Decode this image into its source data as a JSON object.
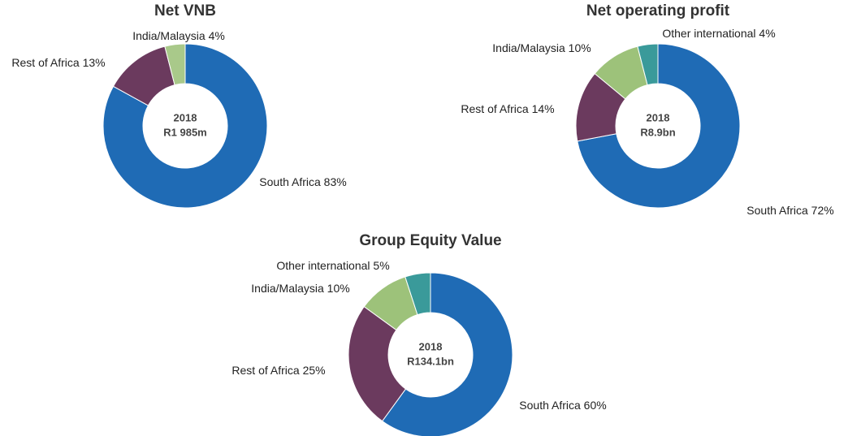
{
  "chart_data": [
    {
      "type": "pie",
      "title": "Net VNB",
      "center_label": [
        "2018",
        "R1 985m"
      ],
      "categories": [
        "South Africa",
        "Rest of Africa",
        "India/Malaysia"
      ],
      "values": [
        83,
        13,
        4
      ],
      "value_labels": [
        "83%",
        "13%",
        "4%"
      ],
      "colors": [
        "#1f6bb5",
        "#6b3a5e",
        "#a9c98a"
      ]
    },
    {
      "type": "pie",
      "title": "Net operating profit",
      "center_label": [
        "2018",
        "R8.9bn"
      ],
      "categories": [
        "South Africa",
        "Rest of Africa",
        "India/Malaysia",
        "Other international"
      ],
      "values": [
        72,
        14,
        10,
        4
      ],
      "value_labels": [
        "72%",
        "14%",
        "10%",
        "4%"
      ],
      "colors": [
        "#1f6bb5",
        "#6b3a5e",
        "#9dc27a",
        "#3a9a9a"
      ]
    },
    {
      "type": "pie",
      "title": "Group Equity Value",
      "center_label": [
        "2018",
        "R134.1bn"
      ],
      "categories": [
        "South Africa",
        "Rest of Africa",
        "India/Malaysia",
        "Other international"
      ],
      "values": [
        60,
        25,
        10,
        5
      ],
      "value_labels": [
        "60%",
        "25%",
        "10%",
        "5%"
      ],
      "colors": [
        "#1f6bb5",
        "#6b3a5e",
        "#9dc27a",
        "#3a9a9a"
      ]
    }
  ]
}
